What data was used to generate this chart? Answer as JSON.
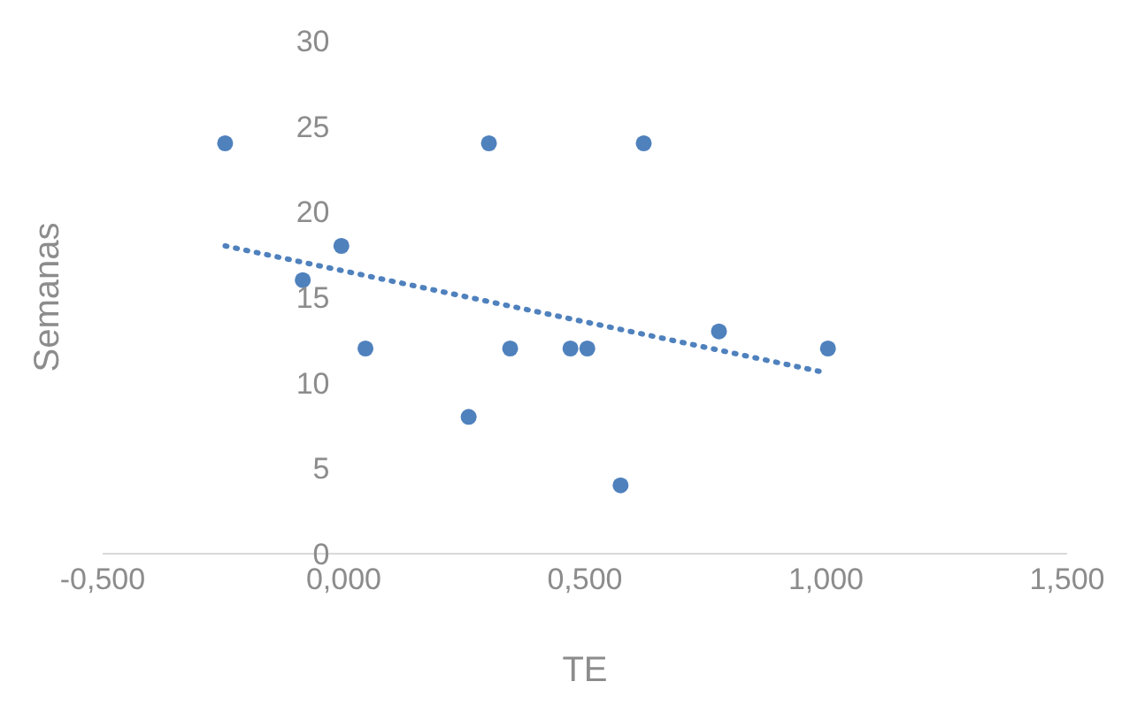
{
  "chart_data": {
    "type": "scatter",
    "xlabel": "TE",
    "ylabel": "Semanas",
    "xlim": [
      -0.5,
      1.5
    ],
    "xticks": [
      {
        "value": -0.5,
        "label": "-0,500"
      },
      {
        "value": 0,
        "label": "0,000"
      },
      {
        "value": 0.5,
        "label": "0,500"
      },
      {
        "value": 1,
        "label": "1,000"
      },
      {
        "value": 1.5,
        "label": "1,500"
      }
    ],
    "ylim": [
      0,
      30
    ],
    "yticks": [
      0,
      5,
      10,
      15,
      20,
      25,
      30
    ],
    "grid": false,
    "legend": false,
    "marker": "circle",
    "series": [
      {
        "color": "#4f81bd",
        "x": [
          -0.246,
          -0.085,
          -0.005,
          0.045,
          0.259,
          0.301,
          0.345,
          0.47,
          0.505,
          0.574,
          0.622,
          0.778,
          1.004
        ],
        "values": [
          24,
          16,
          18,
          12,
          8,
          24,
          12,
          12,
          12,
          4,
          24,
          13,
          12
        ]
      },
      {
        "type": "line",
        "color": "#4f81bd",
        "line_style": "dotted",
        "marker": "none",
        "x": [
          -0.246,
          0.997
        ],
        "values": [
          18.0,
          10.6
        ]
      }
    ]
  }
}
